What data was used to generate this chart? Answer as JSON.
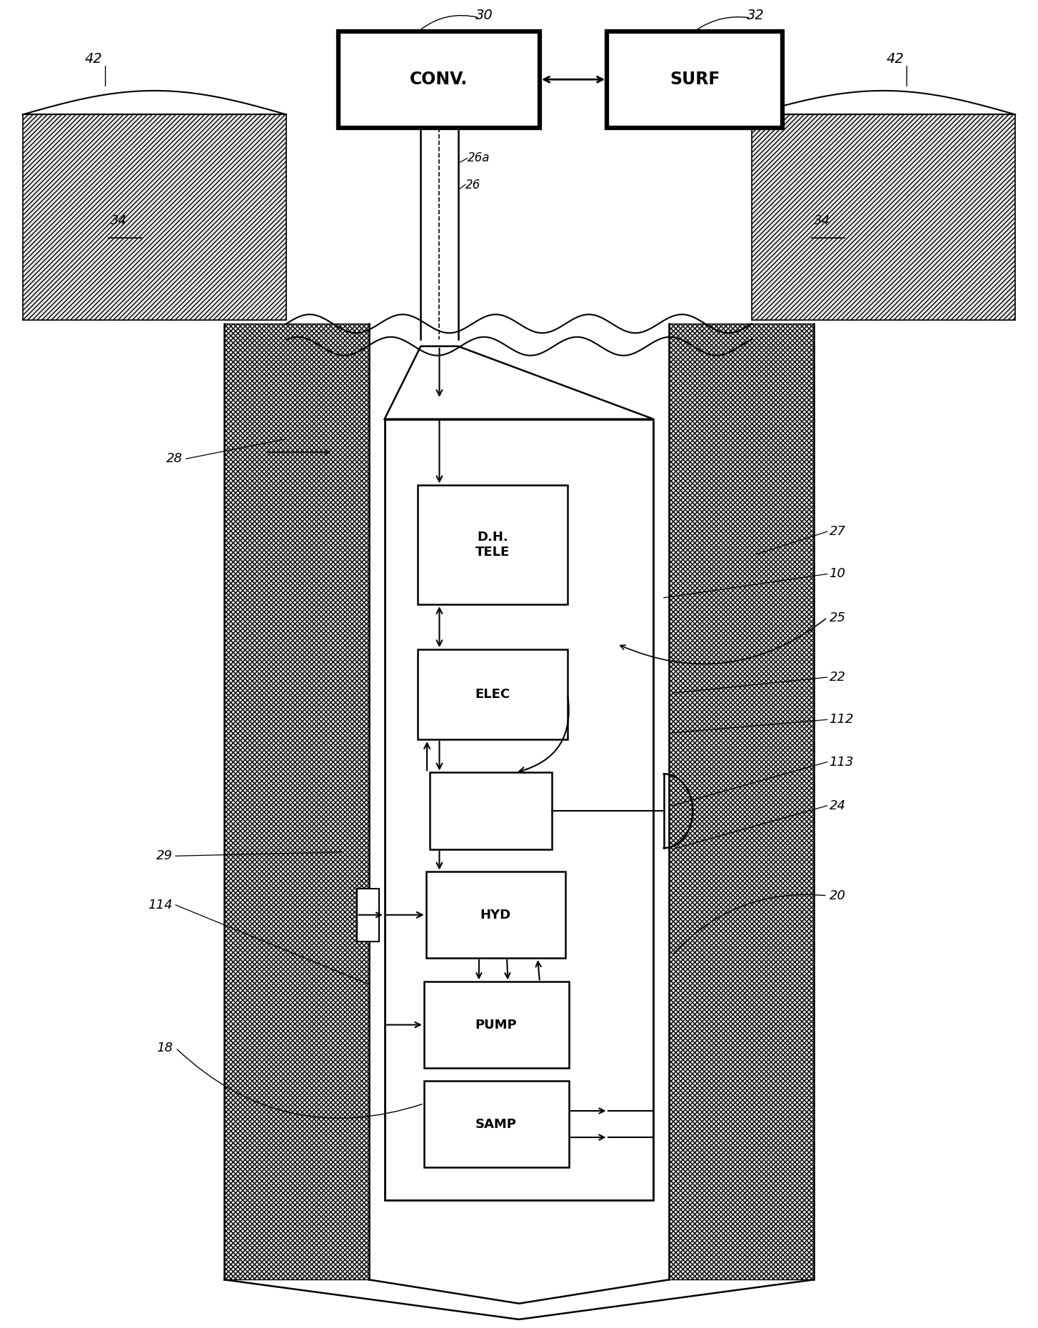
{
  "fig_width": 14.54,
  "fig_height": 18.59,
  "bg_color": "#ffffff",
  "line_color": "#000000",
  "labels": {
    "conv": "CONV.",
    "surf": "SURF",
    "dh_tele": "D.H.\nTELE",
    "elec": "ELEC",
    "hyd": "HYD",
    "pump": "PUMP",
    "samp": "SAMP"
  }
}
